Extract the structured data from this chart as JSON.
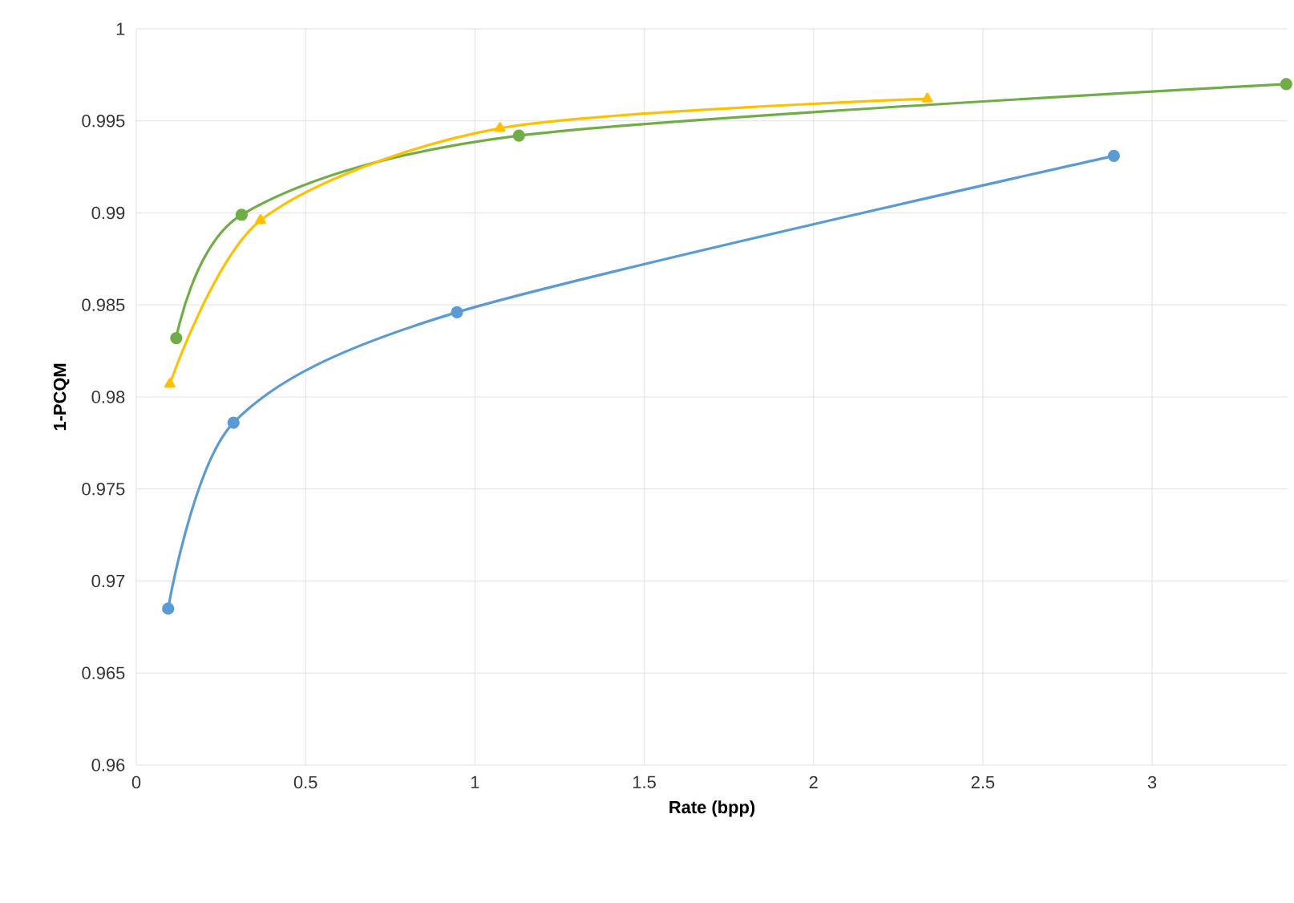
{
  "chart_data": {
    "type": "line",
    "xlabel": "Rate (bpp)",
    "ylabel": "1-PCQM",
    "xlim": [
      0,
      3.4
    ],
    "ylim": [
      0.96,
      1
    ],
    "xticks": [
      0,
      0.5,
      1,
      1.5,
      2,
      2.5,
      3
    ],
    "yticks": [
      0.96,
      0.965,
      0.97,
      0.975,
      0.98,
      0.985,
      0.99,
      0.995,
      1
    ],
    "grid": true,
    "series": [
      {
        "color": "#5b9bd5",
        "marker": "circle",
        "x": [
          0.094,
          0.287,
          0.947,
          2.887
        ],
        "values": [
          0.9685,
          0.9786,
          0.9846,
          0.9931
        ]
      },
      {
        "color": "#70ad47",
        "marker": "circle",
        "x": [
          0.118,
          0.311,
          1.13,
          3.396
        ],
        "values": [
          0.9832,
          0.9899,
          0.9942,
          0.997
        ]
      },
      {
        "color": "#ffc000",
        "marker": "triangle",
        "x": [
          0.099,
          0.367,
          1.074,
          2.336
        ],
        "values": [
          0.9807,
          0.9896,
          0.9946,
          0.9962
        ]
      }
    ]
  }
}
